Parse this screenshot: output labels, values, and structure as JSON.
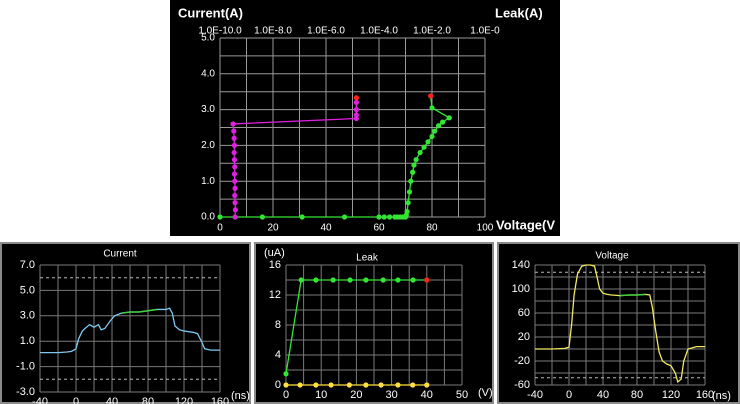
{
  "chart_data": [
    {
      "type": "scatter",
      "y_label": "Current(A)",
      "x2_label": "Leak(A)",
      "x_label": "Voltage(V",
      "xlim": [
        0,
        100
      ],
      "xticks": [
        0,
        20,
        40,
        60,
        80,
        100
      ],
      "x2lim": [
        1e-10,
        1
      ],
      "x2_scale": "log",
      "x2ticks": [
        {
          "value": 1e-10,
          "label": "1.0E-10.0"
        },
        {
          "value": 1e-08,
          "label": "1.0E-8.0"
        },
        {
          "value": 1e-06,
          "label": "1.0E-6.0"
        },
        {
          "value": 0.0001,
          "label": "1.0E-4.0"
        },
        {
          "value": 0.01,
          "label": "1.0E-2.0"
        },
        {
          "value": 1,
          "label": "1.0E-0"
        }
      ],
      "ylim": [
        0,
        5
      ],
      "yticks": [
        {
          "value": 0,
          "label": "0.0"
        },
        {
          "value": 1,
          "label": "1.0"
        },
        {
          "value": 2,
          "label": "2.0"
        },
        {
          "value": 3,
          "label": "3.0"
        },
        {
          "value": 4,
          "label": "4.0"
        },
        {
          "value": 5,
          "label": "5.0"
        }
      ],
      "x_gridlines": [
        0,
        10,
        20,
        30,
        40,
        50,
        60,
        70,
        80,
        90,
        100
      ],
      "y_gridlines": [
        0,
        0.5,
        1,
        1.5,
        2,
        2.5,
        3,
        3.5,
        4,
        4.5,
        5
      ],
      "grid_color": "#9a9a9a",
      "series": [
        {
          "color": "#33e633",
          "last_point_color": "#ff2020",
          "x": [
            0,
            16,
            31,
            47,
            60,
            62,
            64,
            66,
            67,
            68,
            69,
            70,
            70.3,
            70.6,
            71,
            71.5,
            72,
            72.7,
            73.2,
            74,
            75.5,
            77,
            78.5,
            80,
            81,
            82.5,
            84,
            86.5,
            80,
            79.5
          ],
          "values": [
            0,
            0,
            0,
            0,
            0,
            0,
            0,
            0,
            0,
            0,
            0,
            0,
            0.05,
            0.15,
            0.4,
            0.7,
            1.0,
            1.25,
            1.45,
            1.6,
            1.8,
            1.95,
            2.1,
            2.25,
            2.4,
            2.55,
            2.65,
            2.77,
            3.05,
            3.38
          ]
        },
        {
          "color": "#e020e0",
          "last_point_color": "#ff2020",
          "axis": "x2",
          "x": [
            3.7e-10,
            3.8e-10,
            3.7e-10,
            3.6e-10,
            3.7e-10,
            3.6e-10,
            3.5e-10,
            3.6e-10,
            3.5e-10,
            3.4e-10,
            3.5e-10,
            3.4e-10,
            3.3e-10,
            3.1e-10,
            1.4e-05,
            1.4e-05,
            1.4e-05,
            1.4e-05,
            1.4e-05
          ],
          "values": [
            0,
            0.2,
            0.4,
            0.6,
            0.8,
            1.0,
            1.2,
            1.4,
            1.6,
            1.8,
            2.0,
            2.2,
            2.4,
            2.6,
            2.75,
            2.85,
            3.0,
            3.2,
            3.33
          ]
        }
      ]
    },
    {
      "type": "line",
      "title": "Current",
      "x_label": "(ns)",
      "xlim": [
        -40,
        160
      ],
      "xticks": [
        -40,
        0,
        40,
        80,
        120,
        160
      ],
      "ylim": [
        -3,
        7
      ],
      "yticks": [
        {
          "value": -3,
          "label": "-3.0"
        },
        {
          "value": -1,
          "label": "-1.0"
        },
        {
          "value": 1,
          "label": "1.0"
        },
        {
          "value": 3,
          "label": "3.0"
        },
        {
          "value": 5,
          "label": "5.0"
        },
        {
          "value": 7,
          "label": "7.0"
        }
      ],
      "x_gridlines": [
        -40,
        -20,
        0,
        20,
        40,
        60,
        80,
        100,
        120,
        140,
        160
      ],
      "y_gridlines": [
        -3,
        -1,
        1,
        3,
        5,
        7
      ],
      "dashed_lines": [
        6,
        -2
      ],
      "grid_color": "#7a7a7a",
      "highlight": {
        "xlim": [
          50,
          90
        ],
        "color": "#40d040"
      },
      "series": [
        {
          "color": "#7ec8f0",
          "x": [
            -40,
            -30,
            -20,
            -10,
            -5,
            0,
            3,
            7,
            10,
            15,
            20,
            25,
            28,
            32,
            38,
            43,
            50,
            60,
            70,
            80,
            90,
            95,
            100,
            104,
            107,
            110,
            115,
            120,
            130,
            135,
            140,
            143,
            150,
            160
          ],
          "values": [
            0.1,
            0.1,
            0.1,
            0.15,
            0.2,
            0.4,
            1.2,
            1.8,
            2.0,
            2.3,
            2.1,
            2.3,
            1.9,
            2.0,
            2.6,
            3.0,
            3.2,
            3.3,
            3.3,
            3.4,
            3.5,
            3.5,
            3.5,
            3.6,
            3.2,
            2.2,
            1.9,
            1.8,
            1.7,
            1.6,
            0.9,
            0.4,
            0.3,
            0.3
          ]
        }
      ]
    },
    {
      "type": "line",
      "title": "Leak",
      "y_label": "(uA)",
      "x_label": "(V)",
      "xlim": [
        0,
        50
      ],
      "xticks": [
        0,
        10,
        20,
        30,
        40,
        50
      ],
      "ylim": [
        0,
        16
      ],
      "yticks": [
        0,
        4,
        8,
        12,
        16
      ],
      "x_gridlines": [
        0,
        5,
        10,
        15,
        20,
        25,
        30,
        35,
        40,
        45,
        50
      ],
      "y_gridlines": [
        0,
        2,
        4,
        6,
        8,
        10,
        12,
        14,
        16
      ],
      "grid_color": "#7a7a7a",
      "series": [
        {
          "color": "#33e633",
          "markers": true,
          "last_point_color": "#ff2020",
          "x": [
            0,
            4.3,
            8.5,
            13.4,
            18.2,
            22.7,
            27.6,
            31.8,
            36.1,
            40
          ],
          "values": [
            1.5,
            14,
            14,
            14,
            14,
            14,
            14,
            14,
            14,
            14
          ]
        },
        {
          "color": "#ffe040",
          "markers": true,
          "x": [
            0,
            4,
            8.5,
            12.8,
            18,
            22.7,
            27,
            31.8,
            36,
            40
          ],
          "values": [
            0,
            0,
            0,
            0,
            0,
            0,
            0,
            0,
            0,
            0
          ]
        }
      ]
    },
    {
      "type": "line",
      "title": "Voltage",
      "x_label": "(ns)",
      "xlim": [
        -40,
        160
      ],
      "xticks": [
        -40,
        0,
        40,
        80,
        120,
        160
      ],
      "ylim": [
        -60,
        140
      ],
      "yticks": [
        -60,
        -20,
        20,
        60,
        100,
        140
      ],
      "x_gridlines": [
        -40,
        -20,
        0,
        20,
        40,
        60,
        80,
        100,
        120,
        140,
        160
      ],
      "y_gridlines": [
        -60,
        -40,
        -20,
        0,
        20,
        40,
        60,
        80,
        100,
        120,
        140
      ],
      "dashed_lines": [
        128,
        -48
      ],
      "grid_color": "#7a7a7a",
      "highlight": {
        "xlim": [
          60,
          92
        ],
        "color": "#40d040"
      },
      "series": [
        {
          "color": "#f0e860",
          "x": [
            -40,
            -20,
            -5,
            0,
            3,
            6,
            10,
            15,
            20,
            25,
            30,
            33,
            36,
            40,
            45,
            50,
            60,
            70,
            80,
            90,
            95,
            98,
            102,
            106,
            110,
            115,
            120,
            125,
            128,
            132,
            135,
            140,
            150,
            160
          ],
          "values": [
            0,
            0,
            1,
            3,
            40,
            90,
            125,
            138,
            140,
            140,
            138,
            120,
            100,
            93,
            91,
            90,
            89,
            90,
            90,
            91,
            90,
            70,
            30,
            -5,
            -20,
            -25,
            -28,
            -40,
            -55,
            -50,
            -20,
            0,
            4,
            4
          ]
        }
      ]
    }
  ]
}
